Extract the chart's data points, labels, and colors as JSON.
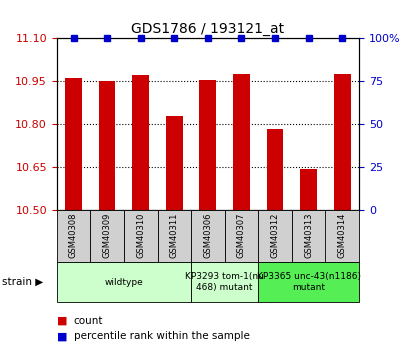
{
  "title": "GDS1786 / 193121_at",
  "samples": [
    "GSM40308",
    "GSM40309",
    "GSM40310",
    "GSM40311",
    "GSM40306",
    "GSM40307",
    "GSM40312",
    "GSM40313",
    "GSM40314"
  ],
  "count_values": [
    10.96,
    10.95,
    10.97,
    10.83,
    10.955,
    10.975,
    10.785,
    10.645,
    10.975
  ],
  "percentile_values": [
    100,
    100,
    100,
    100,
    100,
    100,
    100,
    100,
    100
  ],
  "ylim_left": [
    10.5,
    11.1
  ],
  "ylim_right": [
    0,
    100
  ],
  "yticks_left": [
    10.5,
    10.65,
    10.8,
    10.95,
    11.1
  ],
  "yticks_right": [
    0,
    25,
    50,
    75,
    100
  ],
  "bar_color": "#cc0000",
  "dot_color": "#0000cc",
  "bar_width": 0.5,
  "background_color": "#ffffff",
  "tick_label_color_left": "#cc0000",
  "tick_label_color_right": "#0000cc",
  "legend_count_color": "#cc0000",
  "legend_percentile_color": "#0000cc",
  "sample_box_color": "#d0d0d0",
  "group1_color": "#ccffcc",
  "group2_color": "#55ee55",
  "group1_label": "wildtype",
  "group2_label": "KP3293 tom-1(nu\n468) mutant",
  "group3_label": "KP3365 unc-43(n1186)\nmutant"
}
